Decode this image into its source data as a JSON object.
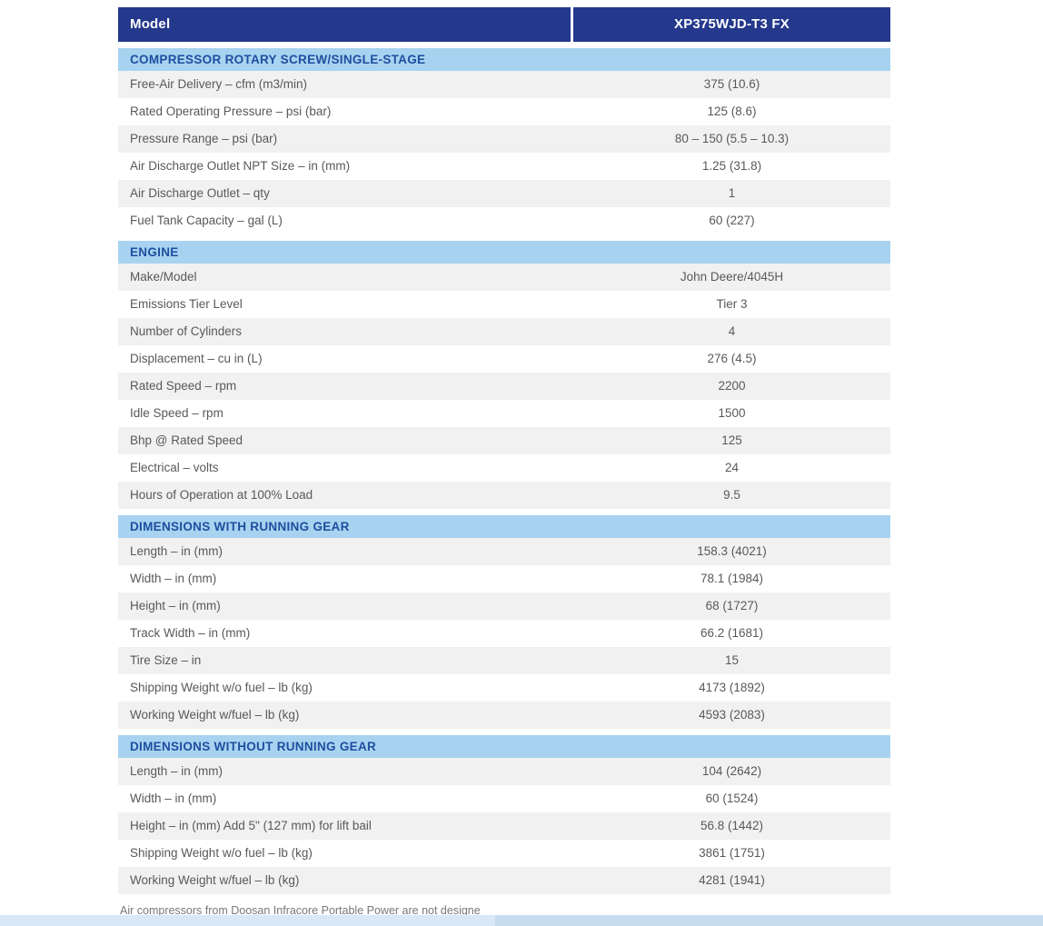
{
  "colors": {
    "header-bg": "#24388C",
    "header-text": "#FFFFFF",
    "section-bg": "#A7D3F0",
    "section-text": "#1E4E9F",
    "row-alt-bg": "#F1F1F2",
    "row-text": "#58595B",
    "footer-text": "#77787B",
    "strip-left": "#D8E8F7",
    "strip-right": "#C7DCEF"
  },
  "table": {
    "header": {
      "label": "Model",
      "value": "XP375WJD-T3 FX"
    },
    "sections": [
      {
        "title": "COMPRESSOR ROTARY SCREW/SINGLE-STAGE",
        "rows": [
          {
            "label": "Free-Air Delivery – cfm (m3/min)",
            "value": "375 (10.6)"
          },
          {
            "label": "Rated Operating Pressure – psi (bar)",
            "value": "125 (8.6)"
          },
          {
            "label": "Pressure Range – psi (bar)",
            "value": "80 – 150 (5.5 – 10.3)"
          },
          {
            "label": "Air Discharge Outlet NPT Size – in (mm)",
            "value": "1.25 (31.8)"
          },
          {
            "label": "Air Discharge Outlet – qty",
            "value": "1"
          },
          {
            "label": "Fuel Tank Capacity – gal (L)",
            "value": "60 (227)"
          }
        ]
      },
      {
        "title": "ENGINE",
        "rows": [
          {
            "label": "Make/Model",
            "value": "John Deere/4045H"
          },
          {
            "label": "Emissions Tier Level",
            "value": "Tier 3"
          },
          {
            "label": "Number of Cylinders",
            "value": "4"
          },
          {
            "label": "Displacement – cu in (L)",
            "value": "276 (4.5)"
          },
          {
            "label": "Rated Speed – rpm",
            "value": "2200"
          },
          {
            "label": "Idle Speed – rpm",
            "value": "1500"
          },
          {
            "label": "Bhp @ Rated Speed",
            "value": "125"
          },
          {
            "label": "Electrical – volts",
            "value": "24"
          },
          {
            "label": "Hours of Operation at 100% Load",
            "value": "9.5"
          }
        ]
      },
      {
        "title": "DIMENSIONS WITH RUNNING GEAR",
        "rows": [
          {
            "label": "Length – in (mm)",
            "value": "158.3 (4021)"
          },
          {
            "label": "Width – in (mm)",
            "value": "78.1 (1984)"
          },
          {
            "label": "Height – in (mm)",
            "value": "68 (1727)"
          },
          {
            "label": "Track Width – in (mm)",
            "value": "66.2 (1681)"
          },
          {
            "label": "Tire Size – in",
            "value": "15"
          },
          {
            "label": "Shipping Weight w/o fuel – lb (kg)",
            "value": "4173 (1892)"
          },
          {
            "label": "Working Weight w/fuel – lb (kg)",
            "value": "4593 (2083)"
          }
        ]
      },
      {
        "title": "DIMENSIONS WITHOUT RUNNING GEAR",
        "rows": [
          {
            "label": "Length – in (mm)",
            "value": "104 (2642)"
          },
          {
            "label": "Width – in (mm)",
            "value": "60 (1524)"
          },
          {
            "label": "Height – in (mm) Add 5\" (127 mm) for lift bail",
            "value": "56.8 (1442)"
          },
          {
            "label": "Shipping Weight w/o fuel – lb (kg)",
            "value": "3861 (1751)"
          },
          {
            "label": "Working Weight w/fuel – lb (kg)",
            "value": "4281 (1941)"
          }
        ]
      }
    ]
  },
  "footer": {
    "note": "Air compressors from Doosan Infracore Portable Power are not designe"
  }
}
